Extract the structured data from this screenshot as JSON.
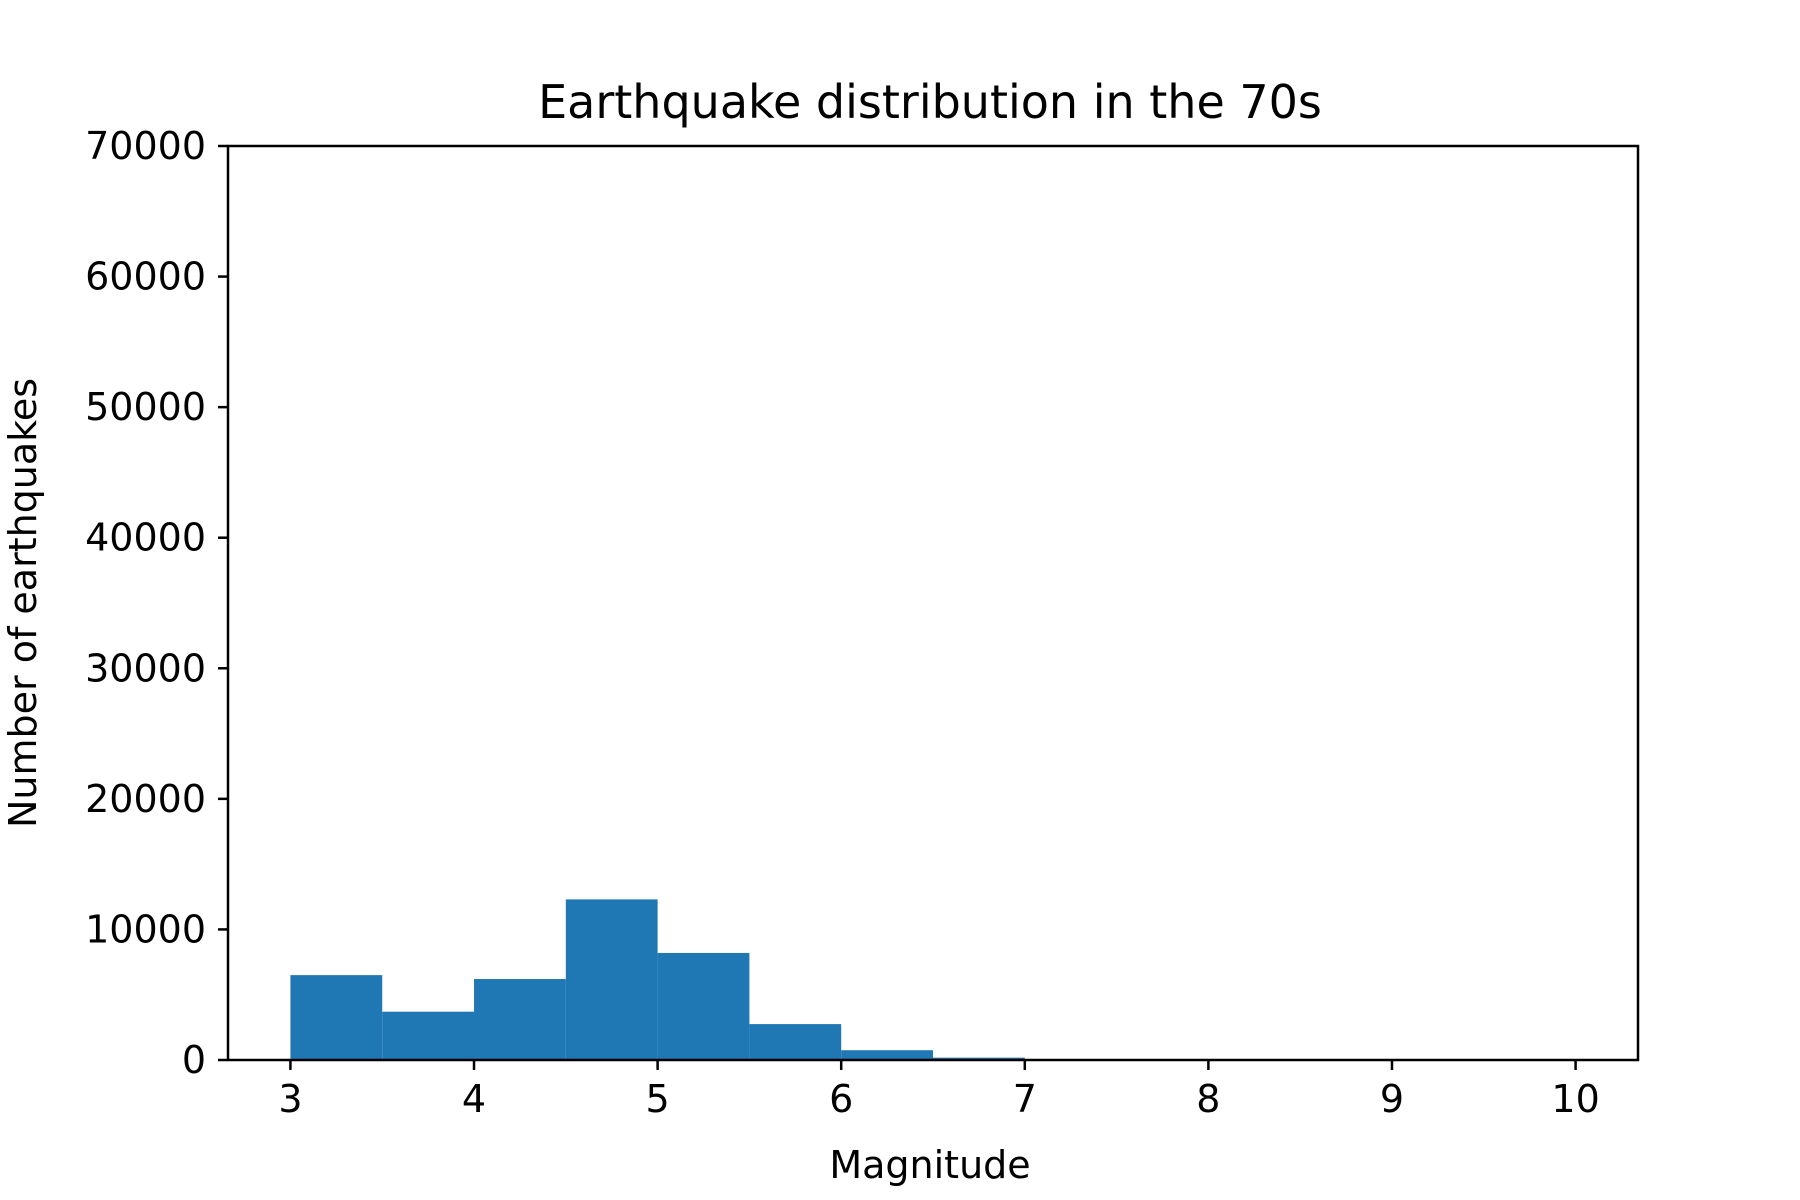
{
  "chart_data": {
    "type": "bar",
    "title": "Earthquake distribution in the 70s",
    "xlabel": "Magnitude",
    "ylabel": "Number of earthquakes",
    "xlim": [
      2.66,
      10.34
    ],
    "ylim": [
      0,
      70000
    ],
    "xticks": [
      3,
      4,
      5,
      6,
      7,
      8,
      9,
      10
    ],
    "yticks": [
      0,
      10000,
      20000,
      30000,
      40000,
      50000,
      60000,
      70000
    ],
    "bins": [
      {
        "x0": 3.0,
        "x1": 3.5,
        "value": 6500
      },
      {
        "x0": 3.5,
        "x1": 4.0,
        "value": 3700
      },
      {
        "x0": 4.0,
        "x1": 4.5,
        "value": 6200
      },
      {
        "x0": 4.5,
        "x1": 5.0,
        "value": 12300
      },
      {
        "x0": 5.0,
        "x1": 5.5,
        "value": 8200
      },
      {
        "x0": 5.5,
        "x1": 6.0,
        "value": 2750
      },
      {
        "x0": 6.0,
        "x1": 6.5,
        "value": 750
      },
      {
        "x0": 6.5,
        "x1": 7.0,
        "value": 180
      },
      {
        "x0": 7.0,
        "x1": 7.5,
        "value": 20
      },
      {
        "x0": 7.5,
        "x1": 8.0,
        "value": 5
      },
      {
        "x0": 8.0,
        "x1": 8.5,
        "value": 1
      },
      {
        "x0": 8.5,
        "x1": 9.0,
        "value": 0
      },
      {
        "x0": 9.0,
        "x1": 9.5,
        "value": 0
      },
      {
        "x0": 9.5,
        "x1": 10.0,
        "value": 0
      }
    ],
    "grid": false,
    "legend": "none",
    "bar_color": "#1f77b4"
  }
}
